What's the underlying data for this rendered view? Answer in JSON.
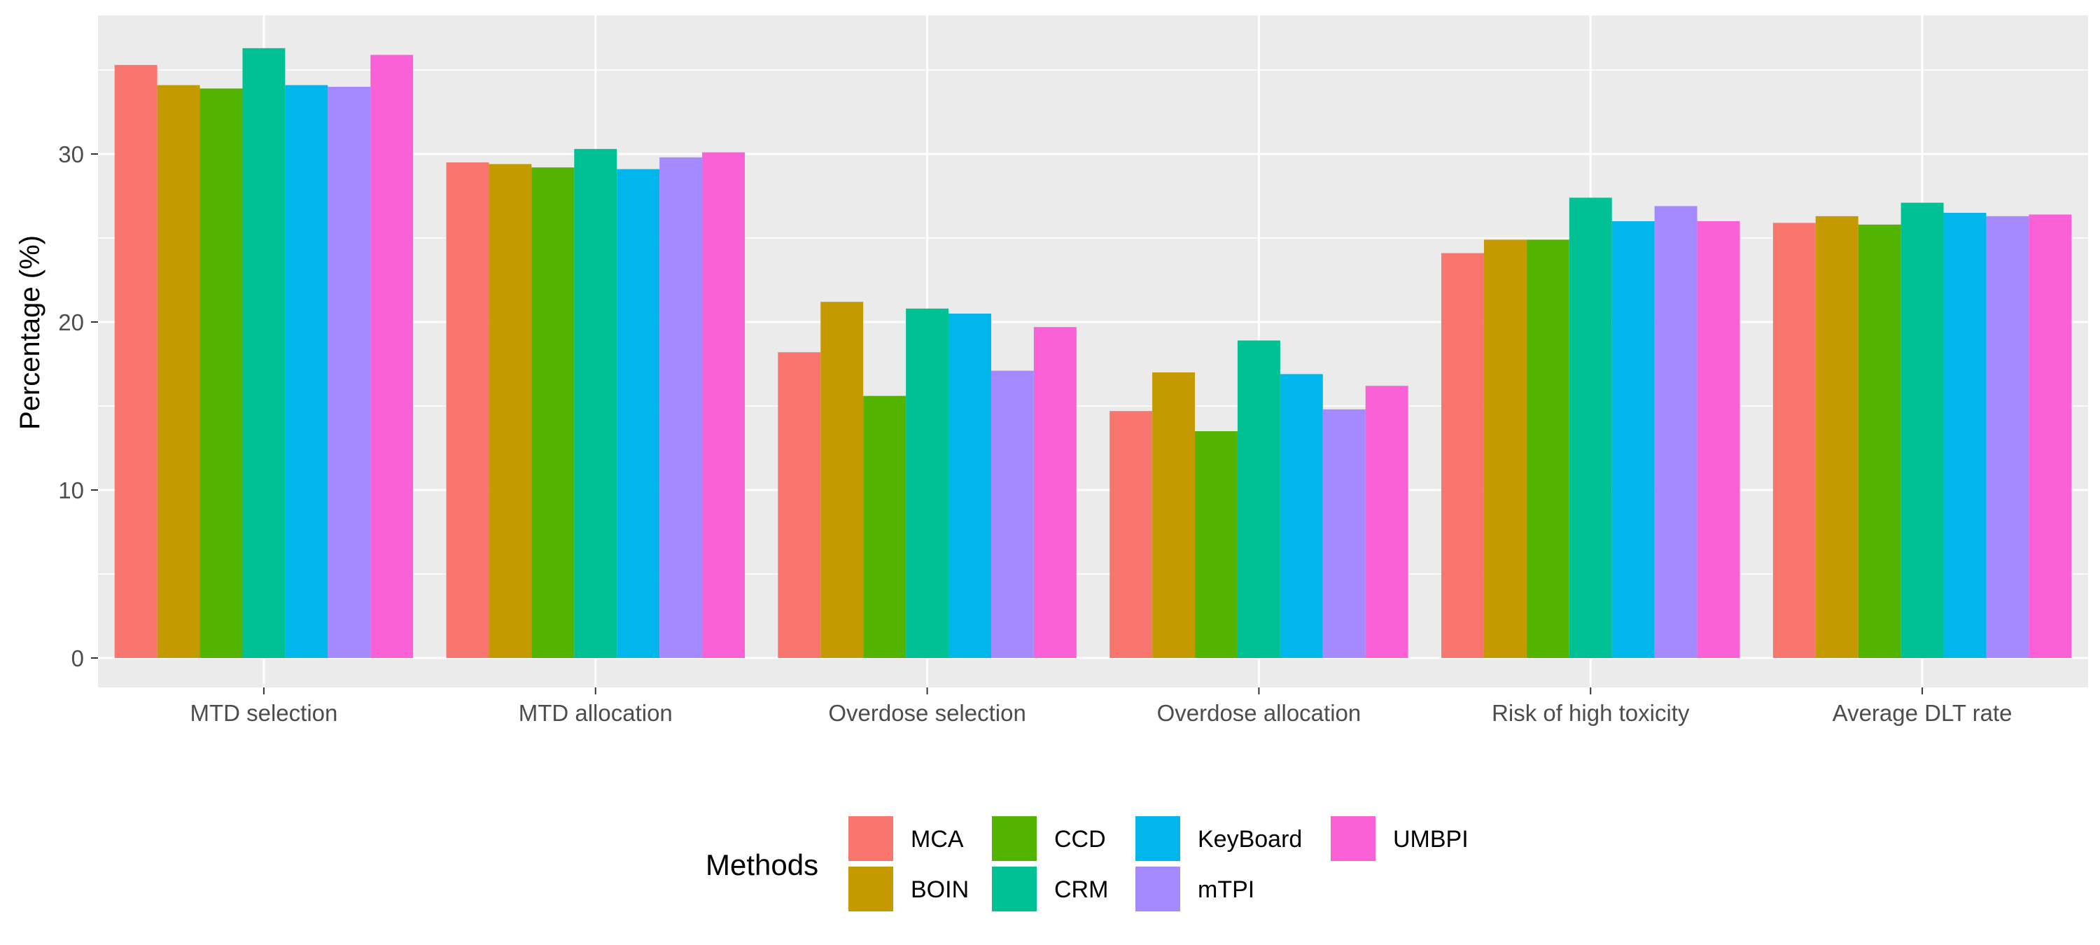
{
  "chart_data": {
    "type": "bar",
    "title": "",
    "xlabel": "",
    "ylabel": "Percentage (%)",
    "ylim": [
      0,
      38
    ],
    "yticks": [
      0,
      10,
      20,
      30
    ],
    "grid": true,
    "legend_position": "bottom",
    "legend_title": "Methods",
    "categories": [
      "MTD selection",
      "MTD allocation",
      "Overdose selection",
      "Overdose allocation",
      "Risk of high toxicity",
      "Average DLT rate"
    ],
    "series": [
      {
        "name": "MCA",
        "color": "#F8766D",
        "values": [
          35.3,
          29.5,
          18.2,
          14.7,
          24.1,
          25.9
        ]
      },
      {
        "name": "BOIN",
        "color": "#C49A00",
        "values": [
          34.1,
          29.4,
          21.2,
          17.0,
          24.9,
          26.3
        ]
      },
      {
        "name": "CCD",
        "color": "#53B400",
        "values": [
          33.9,
          29.2,
          15.6,
          13.5,
          24.9,
          25.8
        ]
      },
      {
        "name": "CRM",
        "color": "#00C094",
        "values": [
          36.3,
          30.3,
          20.8,
          18.9,
          27.4,
          27.1
        ]
      },
      {
        "name": "KeyBoard",
        "color": "#00B6EB",
        "values": [
          34.1,
          29.1,
          20.5,
          16.9,
          26.0,
          26.5
        ]
      },
      {
        "name": "mTPI",
        "color": "#A58AFF",
        "values": [
          34.0,
          29.8,
          17.1,
          14.8,
          26.9,
          26.3
        ]
      },
      {
        "name": "UMBPI",
        "color": "#FB61D7",
        "values": [
          35.9,
          30.1,
          19.7,
          16.2,
          26.0,
          26.4
        ]
      }
    ]
  }
}
